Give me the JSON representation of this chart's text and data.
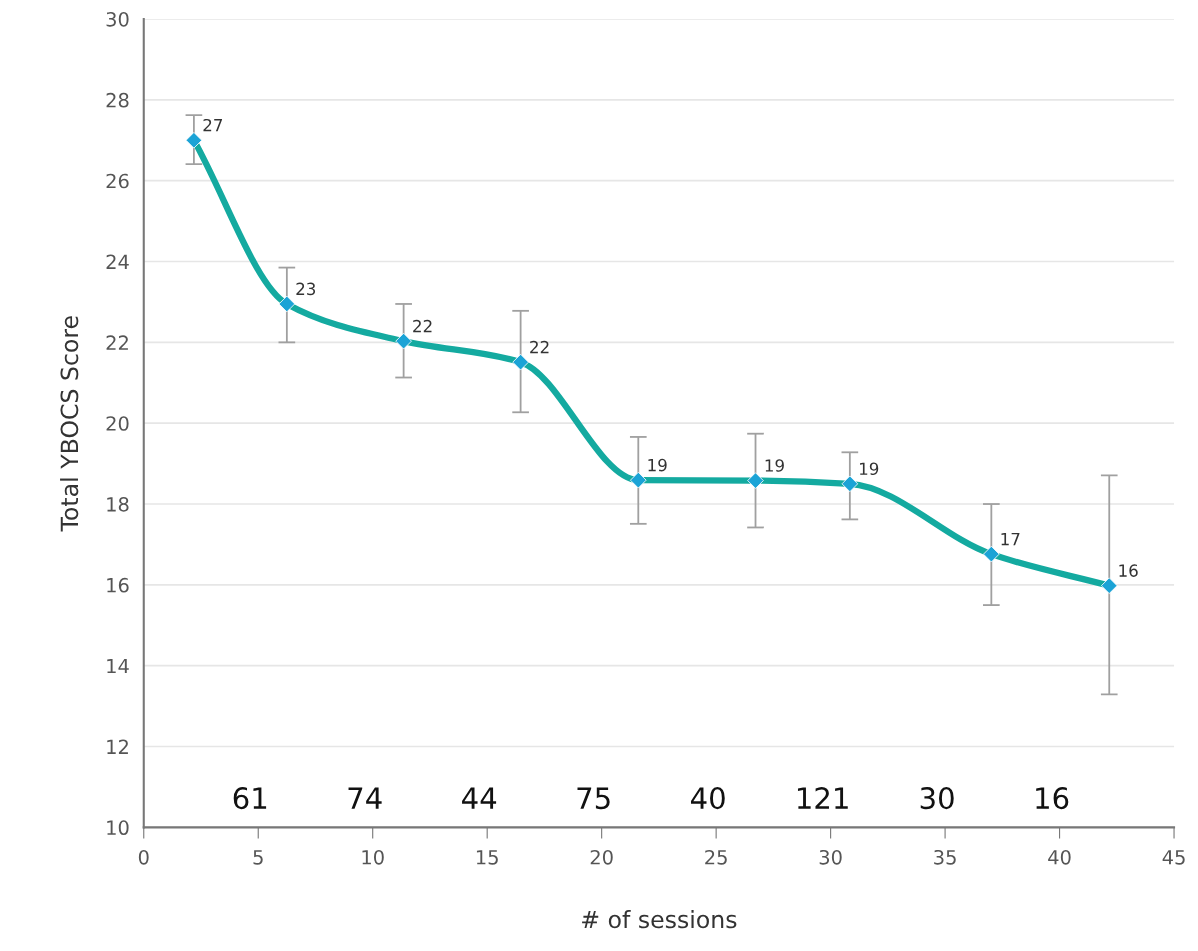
{
  "chart_data": {
    "type": "line",
    "xlabel": "# of sessions",
    "ylabel": "Total YBOCS Score",
    "x": [
      2.19,
      6.25,
      11.35,
      16.46,
      21.6,
      26.72,
      30.84,
      37.02,
      42.17
    ],
    "series": [
      {
        "color": "#14aaa0",
        "values": [
          27.0,
          22.95,
          22.03,
          21.51,
          18.59,
          18.58,
          18.5,
          16.76,
          15.98
        ],
        "errors": [
          [
            26.41,
            27.62
          ],
          [
            22.0,
            23.85
          ],
          [
            21.13,
            22.95
          ],
          [
            20.27,
            22.78
          ],
          [
            17.51,
            19.66
          ],
          [
            17.42,
            19.74
          ],
          [
            17.62,
            19.28
          ],
          [
            15.5,
            18.0
          ],
          [
            13.29,
            18.71
          ]
        ],
        "value_labels": [
          "27",
          "23",
          "22",
          "22",
          "19",
          "19",
          "19",
          "17",
          "16"
        ]
      }
    ],
    "annotations": [
      "61",
      "74",
      "44",
      "75",
      "40",
      "121",
      "30",
      "16"
    ],
    "xlim": [
      0,
      45
    ],
    "xticks": [
      0,
      5,
      10,
      15,
      20,
      25,
      30,
      35,
      40,
      45
    ],
    "ylim": [
      10,
      30
    ],
    "yticks": [
      10,
      12,
      14,
      16,
      18,
      20,
      22,
      24,
      26,
      28,
      30
    ],
    "grid": "y",
    "marker": "diamond",
    "line_style": "solid",
    "legend": false
  }
}
